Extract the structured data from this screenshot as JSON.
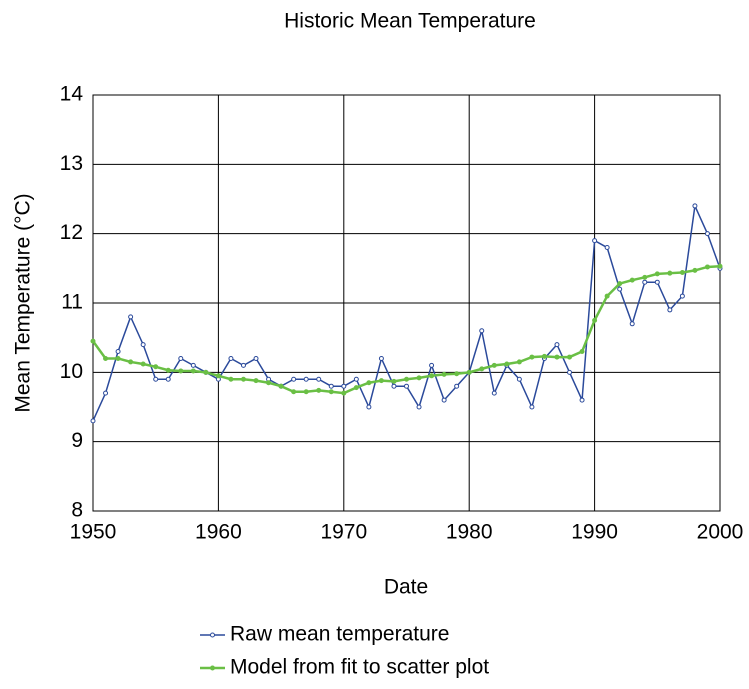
{
  "chart_data": {
    "type": "line",
    "title": "Historic Mean Temperature",
    "x_label": "Date",
    "y_label": "Mean Temperature (°C)",
    "x": [
      1950,
      1951,
      1952,
      1953,
      1954,
      1955,
      1956,
      1957,
      1958,
      1959,
      1960,
      1961,
      1962,
      1963,
      1964,
      1965,
      1966,
      1967,
      1968,
      1969,
      1970,
      1971,
      1972,
      1973,
      1974,
      1975,
      1976,
      1977,
      1978,
      1979,
      1980,
      1981,
      1982,
      1983,
      1984,
      1985,
      1986,
      1987,
      1988,
      1989,
      1990,
      1991,
      1992,
      1993,
      1994,
      1995,
      1996,
      1997,
      1998,
      1999,
      2000
    ],
    "series": [
      {
        "name": "Raw mean temperature",
        "color": "#2b4a9b",
        "marker": "open",
        "values": [
          9.3,
          9.7,
          10.3,
          10.8,
          10.4,
          9.9,
          9.9,
          10.2,
          10.1,
          10.0,
          9.9,
          10.2,
          10.1,
          10.2,
          9.9,
          9.8,
          9.9,
          9.9,
          9.9,
          9.8,
          9.8,
          9.9,
          9.5,
          10.2,
          9.8,
          9.8,
          9.5,
          10.1,
          9.6,
          9.8,
          10.0,
          10.6,
          9.7,
          10.1,
          9.9,
          9.5,
          10.2,
          10.4,
          10.0,
          9.6,
          11.9,
          11.8,
          11.2,
          10.7,
          11.3,
          11.3,
          10.9,
          11.1,
          12.4,
          12.0,
          11.5
        ]
      },
      {
        "name": "Model from fit to scatter plot",
        "color": "#6abf45",
        "marker": "filled",
        "values": [
          10.45,
          10.2,
          10.2,
          10.15,
          10.12,
          10.08,
          10.03,
          10.02,
          10.02,
          10.0,
          9.95,
          9.9,
          9.9,
          9.88,
          9.85,
          9.8,
          9.72,
          9.72,
          9.74,
          9.72,
          9.7,
          9.78,
          9.85,
          9.88,
          9.87,
          9.9,
          9.92,
          9.95,
          9.97,
          9.98,
          10.0,
          10.05,
          10.1,
          10.12,
          10.15,
          10.22,
          10.23,
          10.22,
          10.22,
          10.3,
          10.75,
          11.1,
          11.28,
          11.33,
          11.37,
          11.42,
          11.43,
          11.44,
          11.47,
          11.52,
          11.53
        ]
      }
    ],
    "xlim": [
      1950,
      2000
    ],
    "xticks": [
      1950,
      1960,
      1970,
      1980,
      1990,
      2000
    ],
    "ylim": [
      8,
      14
    ],
    "yticks": [
      8,
      9,
      10,
      11,
      12,
      13,
      14
    ],
    "grid": true,
    "legend": "bottom"
  }
}
